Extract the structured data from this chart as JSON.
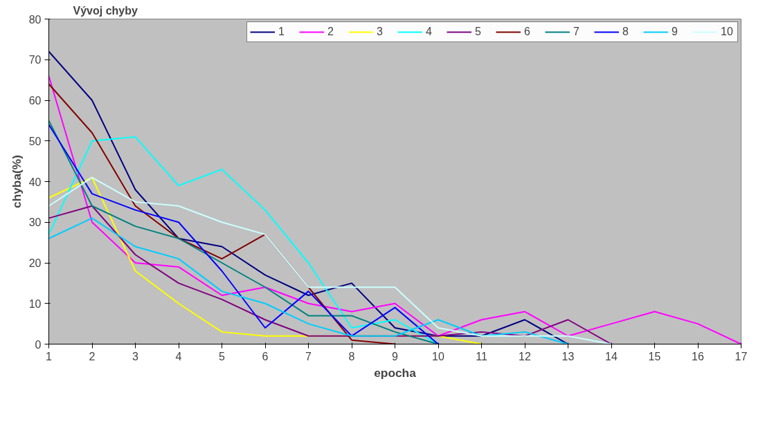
{
  "chart_data": {
    "type": "line",
    "title": "Vývoj chyby",
    "xlabel": "epocha",
    "ylabel": "chyba(%)",
    "xlim": [
      1,
      17
    ],
    "ylim": [
      0,
      80
    ],
    "xticks": [
      1,
      2,
      3,
      4,
      5,
      6,
      7,
      8,
      9,
      10,
      11,
      12,
      13,
      14,
      15,
      16,
      17
    ],
    "yticks": [
      0,
      10,
      20,
      30,
      40,
      50,
      60,
      70,
      80
    ],
    "grid": false,
    "legend": "top right",
    "marker": "none",
    "line_style": "solid",
    "series": [
      {
        "name": "1",
        "color": "#000080",
        "x": [
          1,
          2,
          3,
          4,
          5,
          6,
          7,
          8,
          9,
          10,
          11,
          12,
          13
        ],
        "values": [
          72,
          60,
          38,
          26,
          24,
          17,
          12,
          15,
          4,
          2,
          2,
          6,
          0
        ]
      },
      {
        "name": "2",
        "color": "#ff00ff",
        "x": [
          1,
          2,
          3,
          4,
          5,
          6,
          7,
          8,
          9,
          10,
          11,
          12,
          13,
          14,
          15,
          16,
          17
        ],
        "values": [
          66,
          30,
          20,
          19,
          12,
          14,
          10,
          8,
          10,
          2,
          6,
          8,
          2,
          5,
          8,
          5,
          0
        ]
      },
      {
        "name": "3",
        "color": "#ffff00",
        "x": [
          1,
          2,
          3,
          4,
          5,
          6,
          7,
          8,
          9,
          10,
          11
        ],
        "values": [
          36,
          41,
          18,
          10,
          3,
          2,
          2,
          2,
          2,
          2,
          0
        ]
      },
      {
        "name": "4",
        "color": "#00ffff",
        "x": [
          1,
          2,
          3,
          4,
          5,
          6,
          7,
          8,
          9,
          10
        ],
        "values": [
          27,
          50,
          51,
          39,
          43,
          33,
          20,
          4,
          6,
          0
        ]
      },
      {
        "name": "5",
        "color": "#800080",
        "x": [
          1,
          2,
          3,
          4,
          5,
          6,
          7,
          8,
          9,
          10,
          11,
          12,
          13,
          14
        ],
        "values": [
          31,
          34,
          22,
          15,
          11,
          6,
          2,
          2,
          2,
          2,
          3,
          2,
          6,
          0
        ]
      },
      {
        "name": "6",
        "color": "#800000",
        "x": [
          1,
          2,
          3,
          4,
          5,
          6,
          7,
          8,
          9
        ],
        "values": [
          64,
          52,
          34,
          26,
          21,
          27,
          14,
          1,
          0
        ]
      },
      {
        "name": "7",
        "color": "#008080",
        "x": [
          1,
          2,
          3,
          4,
          5,
          6,
          7,
          8,
          9,
          10
        ],
        "values": [
          55,
          34,
          29,
          26,
          20,
          14,
          7,
          7,
          3,
          0
        ]
      },
      {
        "name": "8",
        "color": "#0000ff",
        "x": [
          1,
          2,
          3,
          4,
          5,
          6,
          7,
          8,
          9,
          10
        ],
        "values": [
          54,
          37,
          33,
          30,
          18,
          4,
          13,
          2,
          9,
          0
        ]
      },
      {
        "name": "9",
        "color": "#00ccff",
        "x": [
          1,
          2,
          3,
          4,
          5,
          6,
          7,
          8,
          9,
          10,
          11,
          12,
          13
        ],
        "values": [
          26,
          31,
          24,
          21,
          13,
          10,
          5,
          2,
          2,
          6,
          2,
          3,
          0
        ]
      },
      {
        "name": "10",
        "color": "#ccffff",
        "x": [
          1,
          2,
          3,
          4,
          5,
          6,
          7,
          8,
          9,
          10,
          11,
          12,
          13,
          14
        ],
        "values": [
          34,
          41,
          35,
          34,
          30,
          27,
          14,
          14,
          14,
          4,
          2,
          2,
          2,
          0
        ]
      }
    ]
  }
}
